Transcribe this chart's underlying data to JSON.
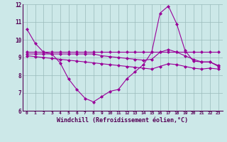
{
  "xlabel": "Windchill (Refroidissement éolien,°C)",
  "x": [
    0,
    1,
    2,
    3,
    4,
    5,
    6,
    7,
    8,
    9,
    10,
    11,
    12,
    13,
    14,
    15,
    16,
    17,
    18,
    19,
    20,
    21,
    22,
    23
  ],
  "line1": [
    10.6,
    9.8,
    9.3,
    9.2,
    8.7,
    7.8,
    7.2,
    6.7,
    6.5,
    6.8,
    7.1,
    7.2,
    7.8,
    8.2,
    8.6,
    9.3,
    11.5,
    11.9,
    10.9,
    9.4,
    8.8,
    8.75,
    8.75,
    8.5
  ],
  "line2": [
    9.3,
    9.3,
    9.3,
    9.3,
    9.3,
    9.3,
    9.3,
    9.3,
    9.3,
    9.3,
    9.3,
    9.3,
    9.3,
    9.3,
    9.3,
    9.3,
    9.3,
    9.3,
    9.3,
    9.3,
    9.3,
    9.3,
    9.3,
    9.3
  ],
  "line3": [
    9.2,
    9.2,
    9.2,
    9.2,
    9.2,
    9.2,
    9.2,
    9.2,
    9.2,
    9.1,
    9.05,
    9.0,
    8.95,
    8.9,
    8.85,
    8.9,
    9.3,
    9.45,
    9.3,
    9.1,
    8.9,
    8.75,
    8.75,
    8.55
  ],
  "line4": [
    9.1,
    9.05,
    9.0,
    8.95,
    8.9,
    8.85,
    8.8,
    8.75,
    8.7,
    8.65,
    8.6,
    8.55,
    8.5,
    8.45,
    8.4,
    8.35,
    8.5,
    8.65,
    8.6,
    8.5,
    8.4,
    8.35,
    8.4,
    8.35
  ],
  "color": "#990099",
  "bg_color": "#cce8e8",
  "grid_color": "#aacccc",
  "ylim": [
    6,
    12
  ],
  "yticks": [
    6,
    7,
    8,
    9,
    10,
    11,
    12
  ]
}
